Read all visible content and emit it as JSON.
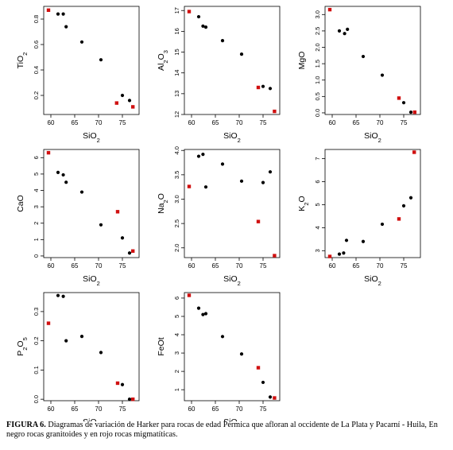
{
  "caption": {
    "label": "FIGURA 6.",
    "text": " Diagramas de variación de Harker para rocas de edad Pérmica que afloran al occidente de La Plata y Pacarní - Huila, En negro rocas granitoides y en rojo rocas migmatíticas."
  },
  "colors": {
    "granitoid": "#000000",
    "migmatite": "#d01010"
  },
  "chart_data": [
    {
      "type": "scatter",
      "ylabel": "TiO2",
      "xlabel": "SiO2",
      "xlim": [
        58.5,
        78.5
      ],
      "ylim": [
        0.05,
        0.9
      ],
      "xticks": [
        60,
        65,
        70,
        75
      ],
      "yticks": [
        0.2,
        0.4,
        0.6,
        0.8
      ],
      "series": [
        {
          "color": "black",
          "points": [
            [
              61.5,
              0.84
            ],
            [
              62.6,
              0.84
            ],
            [
              63.2,
              0.74
            ],
            [
              66.5,
              0.62
            ],
            [
              70.5,
              0.48
            ],
            [
              75.0,
              0.2
            ],
            [
              76.5,
              0.16
            ]
          ]
        },
        {
          "color": "red",
          "points": [
            [
              59.5,
              0.87
            ],
            [
              73.8,
              0.14
            ],
            [
              77.2,
              0.11
            ]
          ]
        }
      ]
    },
    {
      "type": "scatter",
      "ylabel": "Al2O3",
      "xlabel": "SiO2",
      "xlim": [
        58.5,
        78.5
      ],
      "ylim": [
        12.0,
        17.2
      ],
      "xticks": [
        60,
        65,
        70,
        75
      ],
      "yticks": [
        12,
        13,
        14,
        15,
        16,
        17
      ],
      "series": [
        {
          "color": "black",
          "points": [
            [
              61.5,
              16.7
            ],
            [
              62.4,
              16.25
            ],
            [
              63.0,
              16.2
            ],
            [
              66.5,
              15.55
            ],
            [
              70.5,
              14.9
            ],
            [
              75.0,
              13.35
            ],
            [
              76.5,
              13.25
            ]
          ]
        },
        {
          "color": "red",
          "points": [
            [
              59.5,
              16.95
            ],
            [
              74.0,
              13.3
            ],
            [
              77.4,
              12.15
            ]
          ]
        }
      ]
    },
    {
      "type": "scatter",
      "ylabel": "MgO",
      "xlabel": "SiO2",
      "xlim": [
        58.5,
        78.5
      ],
      "ylim": [
        -0.05,
        3.25
      ],
      "xticks": [
        60,
        65,
        70,
        75
      ],
      "yticks": [
        0.0,
        0.5,
        1.0,
        1.5,
        2.0,
        2.5,
        3.0
      ],
      "series": [
        {
          "color": "black",
          "points": [
            [
              61.5,
              2.5
            ],
            [
              62.6,
              2.42
            ],
            [
              63.2,
              2.55
            ],
            [
              66.5,
              1.72
            ],
            [
              70.5,
              1.15
            ],
            [
              75.0,
              0.31
            ],
            [
              76.5,
              0.02
            ]
          ]
        },
        {
          "color": "red",
          "points": [
            [
              59.5,
              3.15
            ],
            [
              74.0,
              0.45
            ],
            [
              77.3,
              0.02
            ]
          ]
        }
      ]
    },
    {
      "type": "scatter",
      "ylabel": "CaO",
      "xlabel": "SiO2",
      "xlim": [
        58.5,
        78.5
      ],
      "ylim": [
        -0.1,
        6.5
      ],
      "xticks": [
        60,
        65,
        70,
        75
      ],
      "yticks": [
        0,
        1,
        2,
        3,
        4,
        5,
        6
      ],
      "series": [
        {
          "color": "black",
          "points": [
            [
              61.5,
              5.1
            ],
            [
              62.6,
              4.95
            ],
            [
              63.2,
              4.5
            ],
            [
              66.5,
              3.9
            ],
            [
              70.5,
              1.9
            ],
            [
              75.0,
              1.1
            ],
            [
              76.5,
              0.18
            ]
          ]
        },
        {
          "color": "red",
          "points": [
            [
              59.5,
              6.3
            ],
            [
              74.0,
              2.7
            ],
            [
              77.2,
              0.3
            ]
          ]
        }
      ]
    },
    {
      "type": "scatter",
      "ylabel": "Na2O",
      "xlabel": "SiO2",
      "xlim": [
        58.5,
        78.5
      ],
      "ylim": [
        1.8,
        4.02
      ],
      "xticks": [
        60,
        65,
        70,
        75
      ],
      "yticks": [
        2.0,
        2.5,
        3.0,
        3.5,
        4.0
      ],
      "series": [
        {
          "color": "black",
          "points": [
            [
              61.5,
              3.88
            ],
            [
              62.4,
              3.92
            ],
            [
              63.0,
              3.25
            ],
            [
              66.5,
              3.72
            ],
            [
              70.5,
              3.37
            ],
            [
              75.0,
              3.34
            ],
            [
              76.5,
              3.56
            ]
          ]
        },
        {
          "color": "red",
          "points": [
            [
              59.5,
              3.26
            ],
            [
              74.0,
              2.54
            ],
            [
              77.4,
              1.84
            ]
          ]
        }
      ]
    },
    {
      "type": "scatter",
      "ylabel": "K2O",
      "xlabel": "SiO2",
      "xlim": [
        58.5,
        78.5
      ],
      "ylim": [
        2.7,
        7.4
      ],
      "xticks": [
        60,
        65,
        70,
        75
      ],
      "yticks": [
        3,
        4,
        5,
        6,
        7
      ],
      "series": [
        {
          "color": "black",
          "points": [
            [
              61.5,
              2.85
            ],
            [
              62.4,
              2.9
            ],
            [
              63.0,
              3.45
            ],
            [
              66.5,
              3.4
            ],
            [
              70.5,
              4.15
            ],
            [
              75.0,
              4.95
            ],
            [
              76.5,
              5.3
            ]
          ]
        },
        {
          "color": "red",
          "points": [
            [
              59.5,
              2.75
            ],
            [
              74.0,
              4.38
            ],
            [
              77.2,
              7.28
            ]
          ]
        }
      ]
    },
    {
      "type": "scatter",
      "ylabel": "P2O5",
      "xlabel": "SiO2",
      "xlim": [
        58.5,
        78.5
      ],
      "ylim": [
        -0.005,
        0.365
      ],
      "xticks": [
        60,
        65,
        70,
        75
      ],
      "yticks": [
        0.0,
        0.1,
        0.2,
        0.3
      ],
      "series": [
        {
          "color": "black",
          "points": [
            [
              61.5,
              0.355
            ],
            [
              62.6,
              0.352
            ],
            [
              63.2,
              0.2
            ],
            [
              66.5,
              0.215
            ],
            [
              70.5,
              0.16
            ],
            [
              75.0,
              0.05
            ],
            [
              76.5,
              0.0
            ]
          ]
        },
        {
          "color": "red",
          "points": [
            [
              59.5,
              0.26
            ],
            [
              74.0,
              0.055
            ],
            [
              77.2,
              0.0
            ]
          ]
        }
      ]
    },
    {
      "type": "scatter",
      "ylabel": "FeOt",
      "xlabel": "SiO2",
      "xlim": [
        58.5,
        78.5
      ],
      "ylim": [
        0.4,
        6.3
      ],
      "xticks": [
        60,
        65,
        70,
        75
      ],
      "yticks": [
        1,
        2,
        3,
        4,
        5,
        6
      ],
      "series": [
        {
          "color": "black",
          "points": [
            [
              61.5,
              5.45
            ],
            [
              62.4,
              5.1
            ],
            [
              63.0,
              5.15
            ],
            [
              66.5,
              3.9
            ],
            [
              70.5,
              2.95
            ],
            [
              75.0,
              1.4
            ],
            [
              76.5,
              0.6
            ]
          ]
        },
        {
          "color": "red",
          "points": [
            [
              59.5,
              6.15
            ],
            [
              74.0,
              2.2
            ],
            [
              77.4,
              0.55
            ]
          ]
        }
      ]
    }
  ]
}
